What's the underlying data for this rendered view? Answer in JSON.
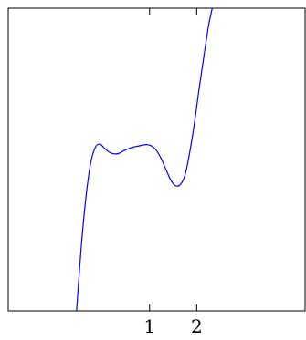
{
  "chart_data": {
    "type": "line",
    "title": "",
    "xlabel": "",
    "ylabel": "",
    "xlim": [
      -2,
      4.3
    ],
    "ylim": [
      -2.6,
      3.3
    ],
    "xticks": [
      {
        "value": 1,
        "label": "1"
      },
      {
        "value": 2,
        "label": "2"
      }
    ],
    "yticks": [],
    "grid": false,
    "legend": "none",
    "series": [
      {
        "color": "#0000ff",
        "x": [
          -0.55,
          -0.45,
          -0.35,
          -0.25,
          -0.15,
          -0.05,
          0.05,
          0.15,
          0.25,
          0.35,
          0.45,
          0.55,
          0.65,
          0.75,
          0.85,
          0.95,
          1.05,
          1.15,
          1.25,
          1.35,
          1.45,
          1.55,
          1.65,
          1.75,
          1.85,
          1.95,
          2.05,
          2.15,
          2.25,
          2.33
        ],
        "y": [
          -2.6,
          -1.35,
          -0.38,
          0.28,
          0.59,
          0.65,
          0.56,
          0.49,
          0.46,
          0.47,
          0.52,
          0.56,
          0.59,
          0.61,
          0.63,
          0.64,
          0.61,
          0.52,
          0.36,
          0.15,
          -0.05,
          -0.16,
          -0.14,
          0.04,
          0.48,
          1.05,
          1.72,
          2.35,
          2.95,
          3.3
        ]
      }
    ]
  }
}
